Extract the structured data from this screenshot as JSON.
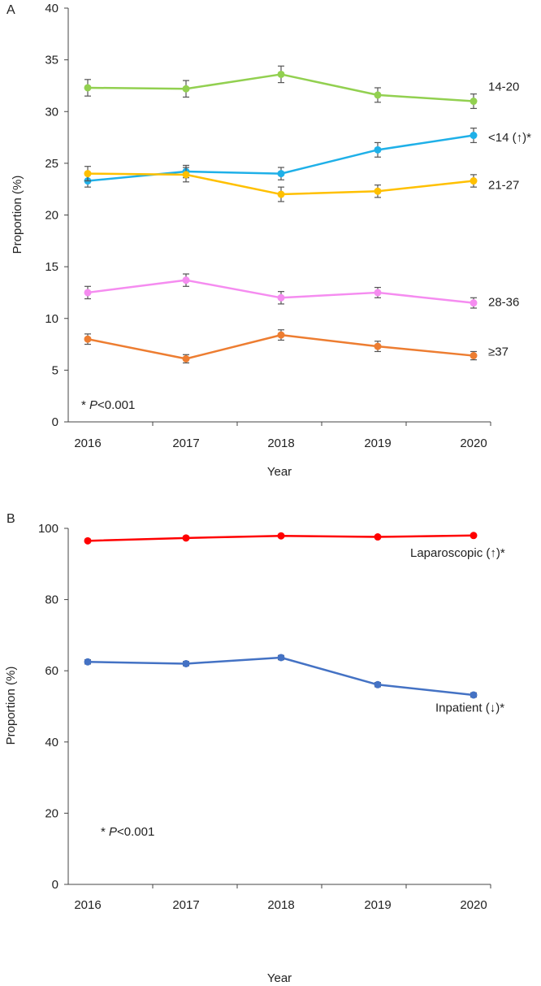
{
  "chart_data": [
    {
      "type": "line",
      "panel_label": "A",
      "categories": [
        "2016",
        "2017",
        "2018",
        "2019",
        "2020"
      ],
      "xlabel": "Year",
      "ylabel": "Proportion (%)",
      "ylim": [
        0,
        40
      ],
      "yticks": [
        "0",
        "5",
        "10",
        "15",
        "20",
        "25",
        "30",
        "35",
        "40"
      ],
      "note_prefix": "* ",
      "note_p": "P",
      "note_rest": "<0.001",
      "series": [
        {
          "name": "14-20",
          "label": "14-20",
          "color": "#92d050",
          "values": [
            32.3,
            32.2,
            33.6,
            31.6,
            31.0
          ],
          "err": [
            0.8,
            0.8,
            0.8,
            0.7,
            0.7
          ]
        },
        {
          "name": "<14",
          "label": "<14 (↑)*",
          "color": "#1fb0e8",
          "values": [
            23.3,
            24.2,
            24.0,
            26.3,
            27.7
          ],
          "err": [
            0.6,
            0.6,
            0.6,
            0.7,
            0.7
          ]
        },
        {
          "name": "21-27",
          "label": "21-27",
          "color": "#ffc000",
          "values": [
            24.0,
            23.9,
            22.0,
            22.3,
            23.3
          ],
          "err": [
            0.7,
            0.7,
            0.7,
            0.6,
            0.6
          ]
        },
        {
          "name": "28-36",
          "label": "28-36",
          "color": "#f58cf0",
          "values": [
            12.5,
            13.7,
            12.0,
            12.5,
            11.5
          ],
          "err": [
            0.6,
            0.6,
            0.6,
            0.5,
            0.5
          ]
        },
        {
          "name": "≥37",
          "label": "≥37",
          "color": "#ed7d31",
          "values": [
            8.0,
            6.1,
            8.4,
            7.3,
            6.4
          ],
          "err": [
            0.5,
            0.4,
            0.5,
            0.5,
            0.4
          ]
        }
      ]
    },
    {
      "type": "line",
      "panel_label": "B",
      "categories": [
        "2016",
        "2017",
        "2018",
        "2019",
        "2020"
      ],
      "xlabel": "Year",
      "ylabel": "Proportion (%)",
      "ylim": [
        0,
        100
      ],
      "yticks": [
        "0",
        "20",
        "40",
        "60",
        "80",
        "100"
      ],
      "note_prefix": "* ",
      "note_p": "P",
      "note_rest": "<0.001",
      "series": [
        {
          "name": "Laparoscopic",
          "label": "Laparoscopic (↑)*",
          "color": "#ff0000",
          "values": [
            96.5,
            97.3,
            97.9,
            97.6,
            98.0
          ],
          "err": [
            0.3,
            0.3,
            0.3,
            0.3,
            0.3
          ]
        },
        {
          "name": "Inpatient",
          "label": "Inpatient (↓)*",
          "color": "#4472c4",
          "values": [
            62.5,
            62.0,
            63.7,
            56.1,
            53.2
          ],
          "err": [
            0.6,
            0.6,
            0.6,
            0.6,
            0.6
          ]
        }
      ]
    }
  ]
}
